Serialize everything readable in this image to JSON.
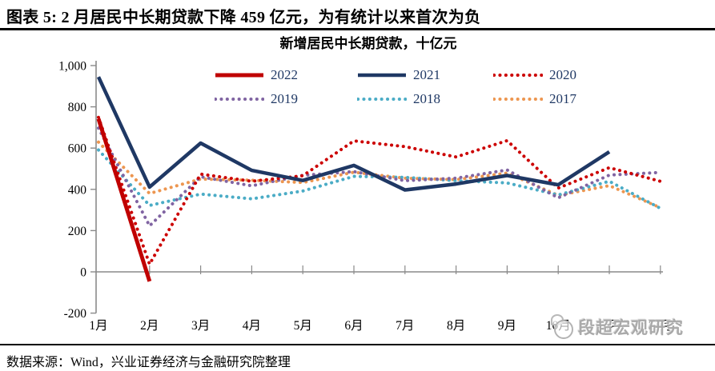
{
  "header": {
    "title": "图表 5: 2 月居民中长期贷款下降 459 亿元，为有统计以来首次为负"
  },
  "watermark": {
    "text": "段超宏观研究"
  },
  "footer": {
    "source": "数据来源：Wind，兴业证券经济与金融研究院整理"
  },
  "chart_data": {
    "type": "line",
    "title": "新增居民中长期贷款，十亿元",
    "categories": [
      "1月",
      "2月",
      "3月",
      "4月",
      "5月",
      "6月",
      "7月",
      "8月",
      "9月",
      "10月",
      "11月",
      "12月"
    ],
    "xlabel": "",
    "ylabel": "",
    "ylim": [
      -200,
      1000
    ],
    "y_tick_values": [
      1000,
      800,
      600,
      400,
      200,
      0,
      -200
    ],
    "y_tick_labels": [
      "1,000",
      "800",
      "600",
      "400",
      "200",
      "0",
      "-200"
    ],
    "grid": false,
    "legend_position": "top",
    "axis_color": "#8a8a8a",
    "series": [
      {
        "name": "2022",
        "color": "#C00000",
        "style": "solid",
        "width": 5,
        "values": [
          742,
          -46,
          null,
          null,
          null,
          null,
          null,
          null,
          null,
          null,
          null,
          null
        ]
      },
      {
        "name": "2021",
        "color": "#1F3864",
        "style": "solid",
        "width": 4.5,
        "values": [
          945,
          411,
          624,
          492,
          443,
          516,
          397,
          426,
          467,
          422,
          582,
          null
        ]
      },
      {
        "name": "2020",
        "color": "#CC0000",
        "style": "dotted",
        "width": 4,
        "values": [
          749,
          37,
          474,
          439,
          466,
          635,
          607,
          557,
          636,
          406,
          505,
          439
        ]
      },
      {
        "name": "2019",
        "color": "#8064A2",
        "style": "dotted",
        "width": 4,
        "values": [
          697,
          223,
          461,
          417,
          468,
          486,
          442,
          454,
          494,
          359,
          469,
          482
        ]
      },
      {
        "name": "2018",
        "color": "#4BACC6",
        "style": "dotted",
        "width": 4,
        "values": [
          591,
          322,
          377,
          354,
          392,
          463,
          458,
          442,
          431,
          373,
          439,
          308
        ]
      },
      {
        "name": "2017",
        "color": "#ED9650",
        "style": "dotted",
        "width": 4,
        "values": [
          629,
          380,
          450,
          444,
          433,
          483,
          454,
          447,
          479,
          371,
          418,
          311
        ]
      }
    ]
  }
}
